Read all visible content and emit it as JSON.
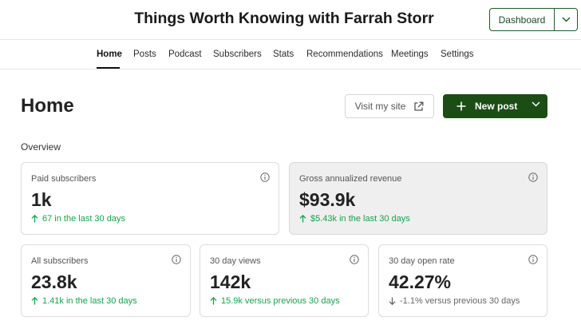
{
  "header": {
    "publication_title": "Things Worth Knowing with Farrah Storr",
    "dashboard_button": "Dashboard"
  },
  "nav": {
    "tabs": [
      "Home",
      "Posts",
      "Podcast",
      "Subscribers",
      "Stats",
      "Recommendations",
      "Meetings",
      "Settings"
    ],
    "active": "Home"
  },
  "main": {
    "title": "Home",
    "visit_site_button": "Visit my site",
    "new_post_button": "New post",
    "overview_label": "Overview"
  },
  "cards": [
    {
      "label": "Paid subscribers",
      "value": "1k",
      "change": "67 in the last 30 days",
      "trend": "up"
    },
    {
      "label": "Gross annualized revenue",
      "value": "$93.9k",
      "change": "$5.43k in the last 30 days",
      "trend": "up"
    },
    {
      "label": "All subscribers",
      "value": "23.8k",
      "change": "1.41k in the last 30 days",
      "trend": "up"
    },
    {
      "label": "30 day views",
      "value": "142k",
      "change": "15.9k versus previous 30 days",
      "trend": "up"
    },
    {
      "label": "30 day open rate",
      "value": "42.27%",
      "change": "-1.1% versus previous 30 days",
      "trend": "down"
    }
  ],
  "colors": {
    "brand_green": "#1b4d14",
    "positive": "#15a34a",
    "neutral": "#666666"
  },
  "icons": {
    "dashboard_dropdown": "chevron-down-icon",
    "visit_site": "external-link-icon",
    "new_post": "plus-icon",
    "new_post_dropdown": "chevron-down-icon",
    "card_info": "info-icon",
    "trend_up": "arrow-up-icon",
    "trend_down": "arrow-down-icon"
  }
}
